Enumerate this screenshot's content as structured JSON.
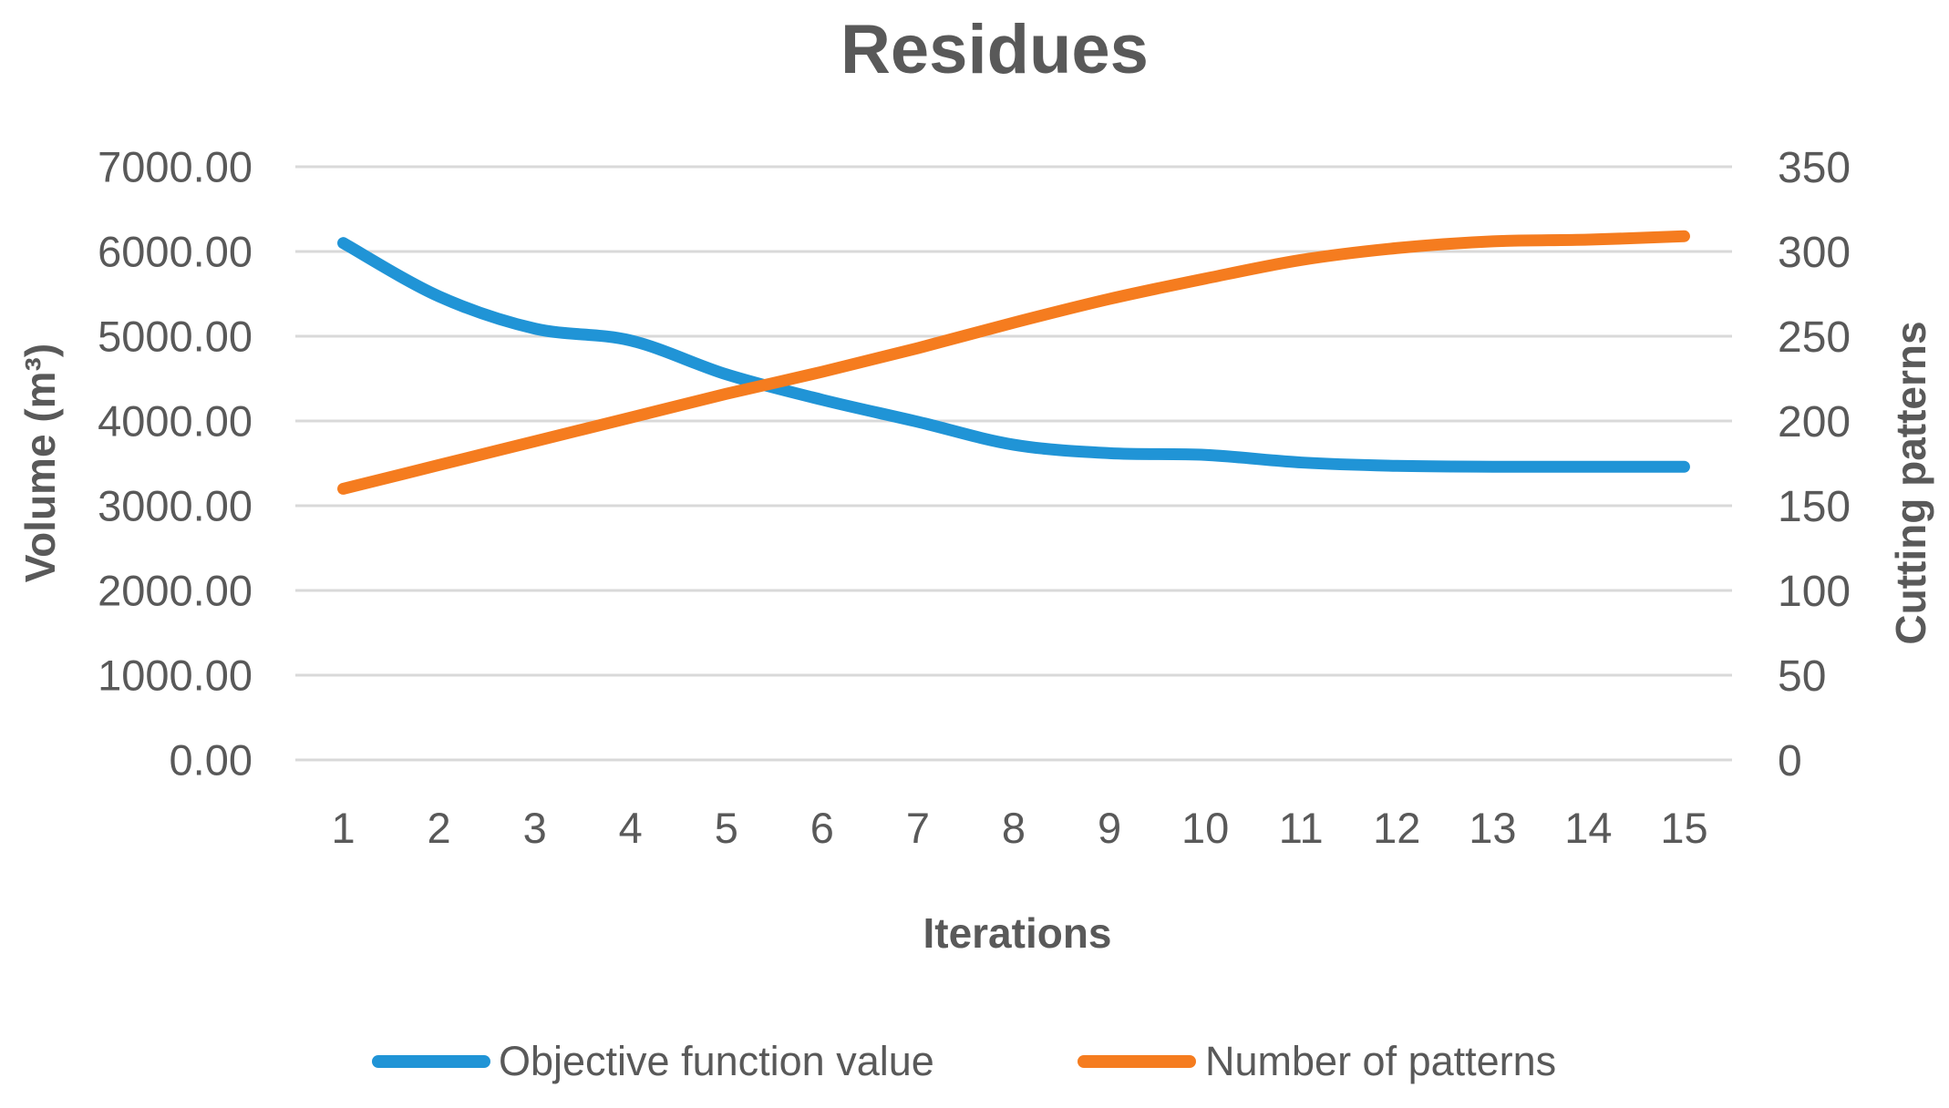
{
  "style": {
    "background": "#FFFFFF",
    "text_color": "#595959",
    "grid_color": "#D9D9D9",
    "series_blue": "#2094D6",
    "series_orange": "#F57C1F"
  },
  "chart_data": {
    "type": "line",
    "title": "Residues",
    "line_style": "smooth",
    "grid": true,
    "legend_position": "bottom",
    "x_axis": {
      "label": "Iterations",
      "categories": [
        "1",
        "2",
        "3",
        "4",
        "5",
        "6",
        "7",
        "8",
        "9",
        "10",
        "11",
        "12",
        "13",
        "14",
        "15"
      ]
    },
    "left_axis": {
      "label": "Volume (m³)",
      "min": 0,
      "max": 7000,
      "tick_step": 1000,
      "ticks_top_to_bottom": [
        "7000.00",
        "6000.00",
        "5000.00",
        "4000.00",
        "3000.00",
        "2000.00",
        "1000.00",
        "0.00"
      ]
    },
    "right_axis": {
      "label": "Cutting patterns",
      "min": 0,
      "max": 350,
      "tick_step": 50,
      "ticks_top_to_bottom": [
        "350",
        "300",
        "250",
        "200",
        "150",
        "100",
        "50",
        "0"
      ]
    },
    "series": [
      {
        "name": "Objective function value",
        "axis": "left",
        "color": "#2094D6",
        "values": [
          6100,
          5470,
          5090,
          4950,
          4550,
          4250,
          3990,
          3720,
          3620,
          3600,
          3510,
          3470,
          3460,
          3460,
          3460
        ]
      },
      {
        "name": "Number of patterns",
        "axis": "right",
        "color": "#F57C1F",
        "values": [
          160,
          174,
          188,
          202,
          216,
          229,
          243,
          258,
          272,
          284,
          295,
          302,
          306,
          307,
          309
        ]
      }
    ]
  }
}
